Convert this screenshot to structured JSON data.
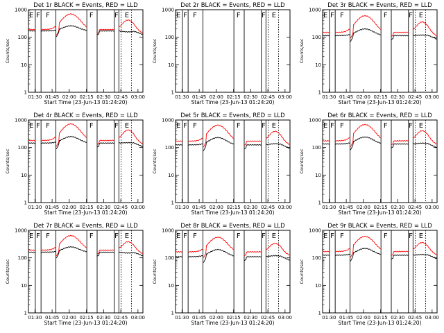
{
  "chart_data": {
    "type": "line",
    "layout": "3x3 grid of small multiples",
    "y_scale": "log",
    "ylim": [
      1,
      1000
    ],
    "y_ticks": [
      "1",
      "10",
      "100",
      "1000"
    ],
    "x_ticks": [
      "01:30",
      "01:45",
      "02:00",
      "02:15",
      "02:30",
      "02:45",
      "03:00"
    ],
    "series_colors": {
      "events": "#000000",
      "lld": "#ff0000"
    },
    "common": {
      "xlabel": "Start Time (23-Jun-13 01:24:20)",
      "ylabel": "Counts/sec",
      "legend_suffix": "BLACK = Events, RED = LLD"
    },
    "panels": [
      {
        "title": "Det 1r BLACK = Events, RED = LLD",
        "flags": [
          "E",
          "F",
          "F",
          "F",
          "F",
          "E"
        ],
        "has_data": true,
        "base_lld": 190,
        "base_events": 170,
        "peak_lld": 700,
        "peak_events": 260
      },
      {
        "title": "Det 2r BLACK = Events, RED = LLD",
        "flags": [
          "E",
          "F",
          "F",
          "F",
          "F",
          "E"
        ],
        "has_data": false,
        "base_lld": 0,
        "base_events": 0,
        "peak_lld": 0,
        "peak_events": 0
      },
      {
        "title": "Det 3r BLACK = Events, RED = LLD",
        "flags": [
          "E",
          "F",
          "F",
          "F",
          "F",
          "E"
        ],
        "has_data": true,
        "base_lld": 150,
        "base_events": 115,
        "peak_lld": 600,
        "peak_events": 200
      },
      {
        "title": "Det 4r BLACK = Events, RED = LLD",
        "flags": [
          "E",
          "F",
          "F",
          "F",
          "F",
          "E"
        ],
        "has_data": true,
        "base_lld": 180,
        "base_events": 145,
        "peak_lld": 720,
        "peak_events": 250
      },
      {
        "title": "Det 5r BLACK = Events, RED = LLD",
        "flags": [
          "E",
          "F",
          "F",
          "F",
          "F",
          "E"
        ],
        "has_data": true,
        "base_lld": 170,
        "base_events": 125,
        "peak_lld": 650,
        "peak_events": 230
      },
      {
        "title": "Det 6r BLACK = Events, RED = LLD",
        "flags": [
          "E",
          "F",
          "F",
          "F",
          "F",
          "E"
        ],
        "has_data": true,
        "base_lld": 175,
        "base_events": 135,
        "peak_lld": 680,
        "peak_events": 240
      },
      {
        "title": "Det 7r BLACK = Events, RED = LLD",
        "flags": [
          "E",
          "F",
          "F",
          "F",
          "F",
          "E"
        ],
        "has_data": true,
        "base_lld": 190,
        "base_events": 160,
        "peak_lld": 640,
        "peak_events": 250
      },
      {
        "title": "Det 8r BLACK = Events, RED = LLD",
        "flags": [
          "E",
          "F",
          "F",
          "F",
          "F",
          "E"
        ],
        "has_data": true,
        "base_lld": 165,
        "base_events": 110,
        "peak_lld": 560,
        "peak_events": 200
      },
      {
        "title": "Det 9r BLACK = Events, RED = LLD",
        "flags": [
          "E",
          "F",
          "F",
          "F",
          "F",
          "E"
        ],
        "has_data": true,
        "base_lld": 170,
        "base_events": 125,
        "peak_lld": 600,
        "peak_events": 220
      }
    ]
  }
}
